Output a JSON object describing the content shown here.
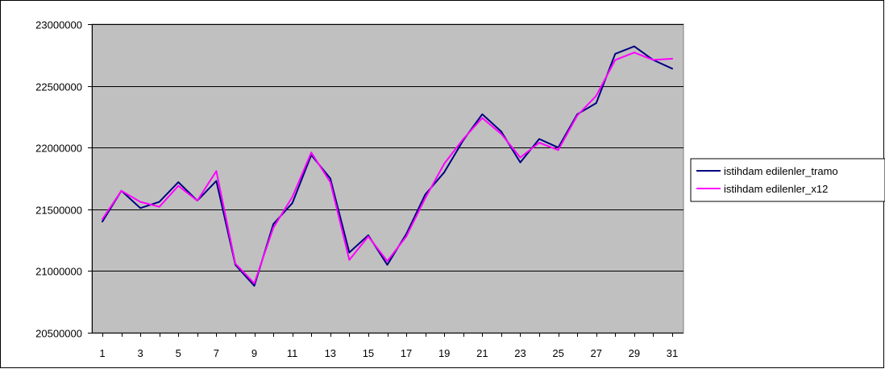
{
  "chart_data": {
    "type": "line",
    "x": [
      1,
      2,
      3,
      4,
      5,
      6,
      7,
      8,
      9,
      10,
      11,
      12,
      13,
      14,
      15,
      16,
      17,
      18,
      19,
      20,
      21,
      22,
      23,
      24,
      25,
      26,
      27,
      28,
      29,
      30,
      31
    ],
    "x_tick_labels": [
      "1",
      "3",
      "5",
      "7",
      "9",
      "11",
      "13",
      "15",
      "17",
      "19",
      "21",
      "23",
      "25",
      "27",
      "29",
      "31"
    ],
    "ylim": [
      20500000,
      23000000
    ],
    "y_ticks": [
      20500000,
      21000000,
      21500000,
      22000000,
      22500000,
      23000000
    ],
    "y_tick_labels": [
      "20500000",
      "21000000",
      "21500000",
      "22000000",
      "22500000",
      "23000000"
    ],
    "grid": "horizontal",
    "legend_position": "right",
    "plot_background": "#c0c0c0",
    "series": [
      {
        "name": "istihdam edilenler_tramo",
        "color": "#000080",
        "values": [
          21400000,
          21650000,
          21510000,
          21560000,
          21720000,
          21570000,
          21730000,
          21050000,
          20880000,
          21380000,
          21550000,
          21940000,
          21750000,
          21150000,
          21290000,
          21050000,
          21300000,
          21620000,
          21800000,
          22060000,
          22270000,
          22130000,
          21880000,
          22070000,
          22000000,
          22270000,
          22360000,
          22760000,
          22820000,
          22710000,
          22640000
        ]
      },
      {
        "name": "istihdam edilenler_x12",
        "color": "#ff00ff",
        "values": [
          21420000,
          21650000,
          21560000,
          21520000,
          21690000,
          21570000,
          21810000,
          21060000,
          20900000,
          21350000,
          21600000,
          21960000,
          21720000,
          21090000,
          21280000,
          21080000,
          21280000,
          21590000,
          21870000,
          22070000,
          22240000,
          22110000,
          21920000,
          22040000,
          21980000,
          22260000,
          22420000,
          22710000,
          22770000,
          22710000,
          22720000
        ]
      }
    ]
  }
}
